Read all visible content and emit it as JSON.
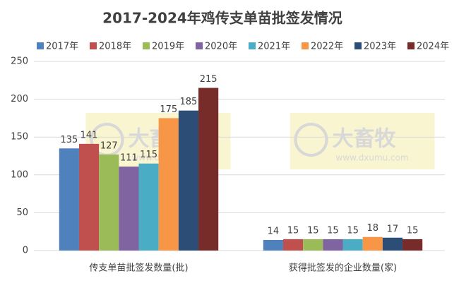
{
  "chart_data": {
    "type": "bar",
    "title": "2017-2024年鸡传支单苗批签发情况",
    "categories": [
      "传支单苗批签发数量(批)",
      "获得批签发的企业数量(家)"
    ],
    "series": [
      {
        "name": "2017年",
        "color": "#4f81bd",
        "values": [
          135,
          14
        ]
      },
      {
        "name": "2018年",
        "color": "#c0504d",
        "values": [
          141,
          15
        ]
      },
      {
        "name": "2019年",
        "color": "#9bbb59",
        "values": [
          127,
          15
        ]
      },
      {
        "name": "2020年",
        "color": "#8064a2",
        "values": [
          111,
          15
        ]
      },
      {
        "name": "2021年",
        "color": "#4bacc6",
        "values": [
          115,
          15
        ]
      },
      {
        "name": "2022年",
        "color": "#f79646",
        "values": [
          175,
          18
        ]
      },
      {
        "name": "2023年",
        "color": "#2c4d75",
        "values": [
          185,
          17
        ]
      },
      {
        "name": "2024年",
        "color": "#772c2a",
        "values": [
          215,
          15
        ]
      }
    ],
    "ylim": [
      0,
      250
    ],
    "yticks": [
      0,
      50,
      100,
      150,
      200,
      250
    ],
    "grid": true,
    "legend": "top",
    "watermark": {
      "brand": "大畜牧",
      "url": "www.dxumu.com"
    }
  }
}
